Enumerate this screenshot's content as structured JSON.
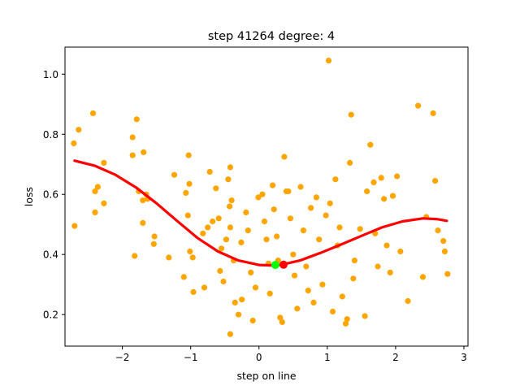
{
  "chart_data": {
    "type": "scatter",
    "title": "step 41264    degree: 4",
    "xlabel": "step on line",
    "ylabel": "loss",
    "xlim": [
      -2.84,
      3.06
    ],
    "ylim": [
      0.095,
      1.09
    ],
    "xticks": [
      -2,
      -1,
      0,
      1,
      2,
      3
    ],
    "yticks": [
      0.2,
      0.4,
      0.6,
      0.8,
      1.0
    ],
    "xtick_labels": [
      "−2",
      "−1",
      "0",
      "1",
      "2",
      "3"
    ],
    "ytick_labels": [
      "0.2",
      "0.4",
      "0.6",
      "0.8",
      "1.0"
    ],
    "grid": false,
    "colors": {
      "points": "#ffa500",
      "curve": "#ff0000",
      "current_marker": "#00ff00",
      "minimum_marker": "#ff0000"
    },
    "series": [
      {
        "type": "scatter",
        "points": [
          [
            -2.71,
            0.77
          ],
          [
            -2.64,
            0.815
          ],
          [
            -2.43,
            0.87
          ],
          [
            -2.7,
            0.495
          ],
          [
            -2.4,
            0.61
          ],
          [
            -2.36,
            0.625
          ],
          [
            -2.4,
            0.54
          ],
          [
            -2.27,
            0.705
          ],
          [
            -2.27,
            0.57
          ],
          [
            -1.85,
            0.79
          ],
          [
            -1.79,
            0.85
          ],
          [
            -1.85,
            0.73
          ],
          [
            -1.69,
            0.74
          ],
          [
            -1.76,
            0.61
          ],
          [
            -1.7,
            0.58
          ],
          [
            -1.65,
            0.6
          ],
          [
            -1.63,
            0.585
          ],
          [
            -1.7,
            0.505
          ],
          [
            -1.53,
            0.46
          ],
          [
            -1.54,
            0.435
          ],
          [
            -1.82,
            0.395
          ],
          [
            -1.32,
            0.39
          ],
          [
            -1.24,
            0.665
          ],
          [
            -1.03,
            0.73
          ],
          [
            -1.07,
            0.605
          ],
          [
            -1.02,
            0.635
          ],
          [
            -1.04,
            0.53
          ],
          [
            -1.01,
            0.41
          ],
          [
            -0.97,
            0.39
          ],
          [
            -0.96,
            0.275
          ],
          [
            -1.1,
            0.325
          ],
          [
            -0.8,
            0.29
          ],
          [
            -0.72,
            0.675
          ],
          [
            -0.82,
            0.47
          ],
          [
            -0.75,
            0.49
          ],
          [
            -0.68,
            0.51
          ],
          [
            -0.63,
            0.62
          ],
          [
            -0.59,
            0.52
          ],
          [
            -0.55,
            0.42
          ],
          [
            -0.57,
            0.345
          ],
          [
            -0.52,
            0.31
          ],
          [
            -0.48,
            0.45
          ],
          [
            -0.45,
            0.65
          ],
          [
            -0.43,
            0.56
          ],
          [
            -0.4,
            0.58
          ],
          [
            -0.42,
            0.49
          ],
          [
            -0.42,
            0.69
          ],
          [
            -0.37,
            0.38
          ],
          [
            -0.35,
            0.24
          ],
          [
            -0.42,
            0.135
          ],
          [
            -0.3,
            0.2
          ],
          [
            -0.25,
            0.25
          ],
          [
            -0.26,
            0.44
          ],
          [
            -0.19,
            0.54
          ],
          [
            -0.16,
            0.48
          ],
          [
            -0.12,
            0.34
          ],
          [
            -0.09,
            0.18
          ],
          [
            -0.05,
            0.29
          ],
          [
            -0.01,
            0.59
          ],
          [
            0.05,
            0.6
          ],
          [
            0.08,
            0.51
          ],
          [
            0.11,
            0.45
          ],
          [
            0.14,
            0.37
          ],
          [
            0.16,
            0.27
          ],
          [
            0.2,
            0.63
          ],
          [
            0.22,
            0.55
          ],
          [
            0.26,
            0.46
          ],
          [
            0.28,
            0.38
          ],
          [
            0.31,
            0.19
          ],
          [
            0.34,
            0.175
          ],
          [
            0.37,
            0.725
          ],
          [
            0.4,
            0.61
          ],
          [
            0.43,
            0.61
          ],
          [
            0.46,
            0.52
          ],
          [
            0.5,
            0.4
          ],
          [
            0.52,
            0.33
          ],
          [
            0.56,
            0.22
          ],
          [
            0.61,
            0.625
          ],
          [
            0.65,
            0.48
          ],
          [
            0.69,
            0.36
          ],
          [
            0.72,
            0.28
          ],
          [
            0.76,
            0.555
          ],
          [
            0.8,
            0.24
          ],
          [
            0.84,
            0.59
          ],
          [
            0.88,
            0.45
          ],
          [
            0.93,
            0.3
          ],
          [
            0.98,
            0.53
          ],
          [
            1.02,
            1.045
          ],
          [
            1.04,
            0.57
          ],
          [
            1.08,
            0.21
          ],
          [
            1.12,
            0.65
          ],
          [
            1.15,
            0.43
          ],
          [
            1.18,
            0.49
          ],
          [
            1.22,
            0.26
          ],
          [
            1.27,
            0.17
          ],
          [
            1.29,
            0.185
          ],
          [
            1.33,
            0.705
          ],
          [
            1.35,
            0.865
          ],
          [
            1.38,
            0.32
          ],
          [
            1.4,
            0.38
          ],
          [
            1.48,
            0.485
          ],
          [
            1.55,
            0.195
          ],
          [
            1.58,
            0.61
          ],
          [
            1.63,
            0.765
          ],
          [
            1.68,
            0.64
          ],
          [
            1.7,
            0.47
          ],
          [
            1.74,
            0.36
          ],
          [
            1.79,
            0.655
          ],
          [
            1.83,
            0.585
          ],
          [
            1.87,
            0.43
          ],
          [
            1.92,
            0.34
          ],
          [
            1.96,
            0.595
          ],
          [
            2.02,
            0.66
          ],
          [
            2.07,
            0.41
          ],
          [
            2.18,
            0.245
          ],
          [
            2.33,
            0.895
          ],
          [
            2.4,
            0.325
          ],
          [
            2.45,
            0.525
          ],
          [
            2.55,
            0.87
          ],
          [
            2.58,
            0.645
          ],
          [
            2.62,
            0.48
          ],
          [
            2.7,
            0.445
          ],
          [
            2.72,
            0.41
          ],
          [
            2.76,
            0.335
          ]
        ]
      },
      {
        "type": "line",
        "points": [
          [
            -2.7,
            0.712
          ],
          [
            -2.4,
            0.695
          ],
          [
            -2.1,
            0.665
          ],
          [
            -1.8,
            0.623
          ],
          [
            -1.5,
            0.57
          ],
          [
            -1.2,
            0.512
          ],
          [
            -0.9,
            0.455
          ],
          [
            -0.6,
            0.41
          ],
          [
            -0.3,
            0.38
          ],
          [
            0.0,
            0.365
          ],
          [
            0.25,
            0.363
          ],
          [
            0.35,
            0.367
          ],
          [
            0.6,
            0.38
          ],
          [
            0.9,
            0.405
          ],
          [
            1.2,
            0.433
          ],
          [
            1.5,
            0.462
          ],
          [
            1.8,
            0.49
          ],
          [
            2.1,
            0.51
          ],
          [
            2.4,
            0.52
          ],
          [
            2.6,
            0.518
          ],
          [
            2.75,
            0.512
          ]
        ]
      }
    ],
    "current_point": {
      "x": 0.24,
      "y": 0.365
    },
    "minimum_point": {
      "x": 0.36,
      "y": 0.366
    }
  }
}
